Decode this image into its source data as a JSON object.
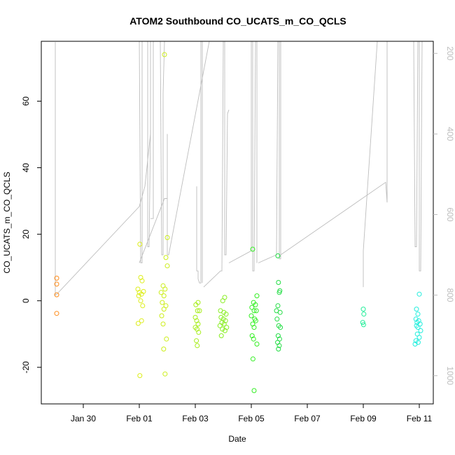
{
  "chart_data": {
    "type": "scatter",
    "title": "ATOM2 Southbound CO_UCATS_m_CO_QCLS",
    "xlabel": "Date",
    "ylabel": "CO_UCATS_m_CO_QCLS",
    "x_tick_labels": [
      "Jan 30",
      "Feb 01",
      "Feb 03",
      "Feb 05",
      "Feb 07",
      "Feb 09",
      "Feb 11"
    ],
    "x_tick_values": [
      1,
      3,
      5,
      7,
      9,
      11,
      13
    ],
    "xlim": [
      -0.5,
      13.5
    ],
    "y_ticks": [
      -20,
      0,
      20,
      40,
      60
    ],
    "ylim": [
      -31,
      78
    ],
    "y2_ticks": [
      200,
      400,
      600,
      800,
      1000
    ],
    "y2lim": [
      1070,
      170
    ],
    "grid": false,
    "points": [
      {
        "x": 0.05,
        "y": 6.8,
        "color": "#FF8C1A"
      },
      {
        "x": 0.05,
        "y": 5.0,
        "color": "#FF8C1A"
      },
      {
        "x": 0.05,
        "y": 1.8,
        "color": "#FF8C1A"
      },
      {
        "x": 0.05,
        "y": -3.8,
        "color": "#FF8C1A"
      },
      {
        "x": 3.02,
        "y": 17.0,
        "color": "#DDEE1A"
      },
      {
        "x": 3.05,
        "y": 7.0,
        "color": "#DDEE1A"
      },
      {
        "x": 3.1,
        "y": 6.0,
        "color": "#DDEE1A"
      },
      {
        "x": 2.95,
        "y": 3.5,
        "color": "#DDEE1A"
      },
      {
        "x": 3.0,
        "y": 2.5,
        "color": "#DDEE1A"
      },
      {
        "x": 3.08,
        "y": 2.0,
        "color": "#DDEE1A"
      },
      {
        "x": 3.15,
        "y": 2.8,
        "color": "#DDEE1A"
      },
      {
        "x": 2.98,
        "y": 1.5,
        "color": "#DDEE1A"
      },
      {
        "x": 3.05,
        "y": 0.0,
        "color": "#DDEE1A"
      },
      {
        "x": 3.12,
        "y": -1.5,
        "color": "#DDEE1A"
      },
      {
        "x": 3.08,
        "y": -6.0,
        "color": "#DDEE1A"
      },
      {
        "x": 2.96,
        "y": -6.8,
        "color": "#DDEE1A"
      },
      {
        "x": 3.02,
        "y": -22.5,
        "color": "#DDEE1A"
      },
      {
        "x": 3.9,
        "y": 74.0,
        "color": "#CCEE1A"
      },
      {
        "x": 4.0,
        "y": 19.0,
        "color": "#CCEE1A"
      },
      {
        "x": 3.95,
        "y": 13.0,
        "color": "#CCEE1A"
      },
      {
        "x": 4.0,
        "y": 10.5,
        "color": "#CCEE1A"
      },
      {
        "x": 3.85,
        "y": 4.5,
        "color": "#CCEE1A"
      },
      {
        "x": 3.92,
        "y": 3.5,
        "color": "#CCEE1A"
      },
      {
        "x": 3.78,
        "y": 2.5,
        "color": "#CCEE1A"
      },
      {
        "x": 3.88,
        "y": 1.5,
        "color": "#CCEE1A"
      },
      {
        "x": 3.82,
        "y": -0.5,
        "color": "#CCEE1A"
      },
      {
        "x": 3.95,
        "y": -1.5,
        "color": "#CCEE1A"
      },
      {
        "x": 3.88,
        "y": -2.5,
        "color": "#CCEE1A"
      },
      {
        "x": 3.8,
        "y": -4.5,
        "color": "#CCEE1A"
      },
      {
        "x": 3.85,
        "y": -7.0,
        "color": "#CCEE1A"
      },
      {
        "x": 3.97,
        "y": -11.5,
        "color": "#CCEE1A"
      },
      {
        "x": 3.87,
        "y": -14.5,
        "color": "#CCEE1A"
      },
      {
        "x": 3.92,
        "y": -22.0,
        "color": "#CCEE1A"
      },
      {
        "x": 5.1,
        "y": -0.5,
        "color": "#A6EE1A"
      },
      {
        "x": 5.02,
        "y": -1.2,
        "color": "#A6EE1A"
      },
      {
        "x": 5.08,
        "y": -3.0,
        "color": "#A6EE1A"
      },
      {
        "x": 5.15,
        "y": -3.0,
        "color": "#A6EE1A"
      },
      {
        "x": 5.0,
        "y": -5.0,
        "color": "#A6EE1A"
      },
      {
        "x": 5.05,
        "y": -6.0,
        "color": "#A6EE1A"
      },
      {
        "x": 5.1,
        "y": -7.0,
        "color": "#A6EE1A"
      },
      {
        "x": 5.0,
        "y": -8.0,
        "color": "#A6EE1A"
      },
      {
        "x": 5.06,
        "y": -8.5,
        "color": "#A6EE1A"
      },
      {
        "x": 5.12,
        "y": -9.5,
        "color": "#A6EE1A"
      },
      {
        "x": 5.04,
        "y": -12.0,
        "color": "#A6EE1A"
      },
      {
        "x": 5.07,
        "y": -13.5,
        "color": "#A6EE1A"
      },
      {
        "x": 6.05,
        "y": 1.0,
        "color": "#88EE22"
      },
      {
        "x": 5.98,
        "y": 0.0,
        "color": "#88EE22"
      },
      {
        "x": 5.9,
        "y": -3.0,
        "color": "#88EE22"
      },
      {
        "x": 6.02,
        "y": -3.5,
        "color": "#88EE22"
      },
      {
        "x": 6.1,
        "y": -4.0,
        "color": "#88EE22"
      },
      {
        "x": 5.92,
        "y": -5.0,
        "color": "#88EE22"
      },
      {
        "x": 6.0,
        "y": -5.5,
        "color": "#88EE22"
      },
      {
        "x": 6.08,
        "y": -6.0,
        "color": "#88EE22"
      },
      {
        "x": 5.95,
        "y": -6.5,
        "color": "#88EE22"
      },
      {
        "x": 6.03,
        "y": -7.0,
        "color": "#88EE22"
      },
      {
        "x": 5.88,
        "y": -7.5,
        "color": "#88EE22"
      },
      {
        "x": 6.12,
        "y": -8.0,
        "color": "#88EE22"
      },
      {
        "x": 5.97,
        "y": -8.5,
        "color": "#88EE22"
      },
      {
        "x": 6.06,
        "y": -9.0,
        "color": "#88EE22"
      },
      {
        "x": 5.93,
        "y": -10.5,
        "color": "#88EE22"
      },
      {
        "x": 7.05,
        "y": 15.5,
        "color": "#33EE22"
      },
      {
        "x": 7.2,
        "y": 1.5,
        "color": "#33EE22"
      },
      {
        "x": 7.08,
        "y": -0.5,
        "color": "#33EE22"
      },
      {
        "x": 7.15,
        "y": -1.2,
        "color": "#33EE22"
      },
      {
        "x": 7.02,
        "y": -2.0,
        "color": "#33EE22"
      },
      {
        "x": 7.1,
        "y": -3.0,
        "color": "#33EE22"
      },
      {
        "x": 7.18,
        "y": -3.0,
        "color": "#33EE22"
      },
      {
        "x": 7.0,
        "y": -4.5,
        "color": "#33EE22"
      },
      {
        "x": 7.12,
        "y": -5.5,
        "color": "#33EE22"
      },
      {
        "x": 7.16,
        "y": -6.0,
        "color": "#33EE22"
      },
      {
        "x": 7.05,
        "y": -7.0,
        "color": "#33EE22"
      },
      {
        "x": 7.1,
        "y": -8.0,
        "color": "#33EE22"
      },
      {
        "x": 7.03,
        "y": -10.5,
        "color": "#33EE22"
      },
      {
        "x": 7.08,
        "y": -11.5,
        "color": "#33EE22"
      },
      {
        "x": 7.2,
        "y": -13.0,
        "color": "#33EE22"
      },
      {
        "x": 7.06,
        "y": -17.5,
        "color": "#33EE22"
      },
      {
        "x": 7.1,
        "y": -27.0,
        "color": "#33EE22"
      },
      {
        "x": 7.95,
        "y": 13.5,
        "color": "#22DD44"
      },
      {
        "x": 7.97,
        "y": 5.5,
        "color": "#22DD44"
      },
      {
        "x": 8.02,
        "y": 3.0,
        "color": "#22DD44"
      },
      {
        "x": 8.0,
        "y": 2.5,
        "color": "#22DD44"
      },
      {
        "x": 7.95,
        "y": -1.5,
        "color": "#22DD44"
      },
      {
        "x": 7.9,
        "y": -3.0,
        "color": "#22DD44"
      },
      {
        "x": 8.03,
        "y": -3.5,
        "color": "#22DD44"
      },
      {
        "x": 7.92,
        "y": -5.5,
        "color": "#22DD44"
      },
      {
        "x": 7.98,
        "y": -7.5,
        "color": "#22DD44"
      },
      {
        "x": 8.04,
        "y": -8.0,
        "color": "#22DD44"
      },
      {
        "x": 7.96,
        "y": -10.5,
        "color": "#22DD44"
      },
      {
        "x": 8.01,
        "y": -11.5,
        "color": "#22DD44"
      },
      {
        "x": 7.94,
        "y": -12.5,
        "color": "#22DD44"
      },
      {
        "x": 8.0,
        "y": -13.5,
        "color": "#22DD44"
      },
      {
        "x": 7.97,
        "y": -14.5,
        "color": "#22DD44"
      },
      {
        "x": 11.0,
        "y": -2.5,
        "color": "#22EE99"
      },
      {
        "x": 11.02,
        "y": -4.0,
        "color": "#22EE99"
      },
      {
        "x": 10.98,
        "y": -6.5,
        "color": "#22EE99"
      },
      {
        "x": 11.01,
        "y": -7.2,
        "color": "#22EE99"
      },
      {
        "x": 13.0,
        "y": 2.0,
        "color": "#22EEDD"
      },
      {
        "x": 12.9,
        "y": -2.5,
        "color": "#22EEDD"
      },
      {
        "x": 12.95,
        "y": -4.0,
        "color": "#22EEDD"
      },
      {
        "x": 12.88,
        "y": -5.5,
        "color": "#22EEDD"
      },
      {
        "x": 12.98,
        "y": -6.0,
        "color": "#22EEDD"
      },
      {
        "x": 12.92,
        "y": -6.5,
        "color": "#22EEDD"
      },
      {
        "x": 13.03,
        "y": -7.0,
        "color": "#22EEDD"
      },
      {
        "x": 12.9,
        "y": -7.5,
        "color": "#22EEDD"
      },
      {
        "x": 12.95,
        "y": -8.0,
        "color": "#22EEDD"
      },
      {
        "x": 13.05,
        "y": -9.0,
        "color": "#22EEDD"
      },
      {
        "x": 12.93,
        "y": -10.0,
        "color": "#22EEDD"
      },
      {
        "x": 13.0,
        "y": -11.0,
        "color": "#22EEDD"
      },
      {
        "x": 12.88,
        "y": -12.0,
        "color": "#22EEDD"
      },
      {
        "x": 12.96,
        "y": -12.5,
        "color": "#22EEDD"
      },
      {
        "x": 12.85,
        "y": -13.0,
        "color": "#22EEDD"
      }
    ],
    "secondary_series": {
      "axis": "right",
      "color": "#bdbdbd",
      "segments": [
        [
          [
            0.0,
            172
          ],
          [
            0.0,
            800
          ],
          [
            0.05,
            798
          ],
          [
            3.0,
            580
          ],
          [
            3.2,
            530
          ],
          [
            3.4,
            400
          ],
          [
            3.4,
            170
          ],
          [
            3.5,
            170
          ],
          [
            3.5,
            610
          ],
          [
            3.4,
            610
          ]
        ],
        [
          [
            3.0,
            170
          ],
          [
            3.05,
            720
          ],
          [
            3.1,
            720
          ],
          [
            3.1,
            170
          ],
          [
            3.3,
            170
          ],
          [
            3.3,
            680
          ],
          [
            3.35,
            680
          ],
          [
            3.4,
            390
          ]
        ],
        [
          [
            3.0,
            720
          ],
          [
            3.9,
            560
          ],
          [
            4.0,
            560
          ],
          [
            4.0,
            400
          ],
          [
            4.0,
            700
          ],
          [
            4.05,
            700
          ],
          [
            5.5,
            170
          ]
        ],
        [
          [
            3.75,
            170
          ],
          [
            3.8,
            700
          ],
          [
            3.85,
            700
          ],
          [
            3.85,
            300
          ],
          [
            3.9,
            170
          ]
        ],
        [
          [
            5.05,
            530
          ],
          [
            5.05,
            740
          ],
          [
            5.1,
            740
          ],
          [
            5.1,
            760
          ],
          [
            5.15,
            770
          ],
          [
            5.2,
            770
          ],
          [
            5.2,
            170
          ],
          [
            5.25,
            170
          ],
          [
            5.25,
            770
          ]
        ],
        [
          [
            5.3,
            780
          ],
          [
            5.9,
            740
          ],
          [
            5.95,
            740
          ],
          [
            6.0,
            170
          ],
          [
            6.05,
            170
          ],
          [
            6.05,
            700
          ],
          [
            6.1,
            700
          ],
          [
            6.15,
            350
          ],
          [
            6.2,
            340
          ]
        ],
        [
          [
            6.2,
            720
          ],
          [
            7.0,
            690
          ],
          [
            7.0,
            170
          ],
          [
            7.05,
            170
          ],
          [
            7.05,
            740
          ],
          [
            7.1,
            740
          ],
          [
            7.15,
            170
          ],
          [
            7.2,
            170
          ],
          [
            7.2,
            720
          ]
        ],
        [
          [
            7.25,
            720
          ],
          [
            7.9,
            700
          ],
          [
            7.95,
            170
          ],
          [
            8.0,
            170
          ],
          [
            8.0,
            710
          ],
          [
            8.05,
            710
          ],
          [
            8.05,
            170
          ]
        ],
        [
          [
            8.05,
            700
          ],
          [
            11.8,
            520
          ],
          [
            11.85,
            570
          ],
          [
            11.85,
            170
          ]
        ],
        [
          [
            11.0,
            780
          ],
          [
            11.0,
            690
          ],
          [
            11.5,
            170
          ]
        ],
        [
          [
            12.8,
            170
          ],
          [
            12.85,
            680
          ],
          [
            12.9,
            680
          ],
          [
            12.95,
            170
          ],
          [
            13.0,
            170
          ],
          [
            13.0,
            740
          ],
          [
            13.05,
            740
          ],
          [
            13.1,
            170
          ]
        ]
      ]
    }
  }
}
